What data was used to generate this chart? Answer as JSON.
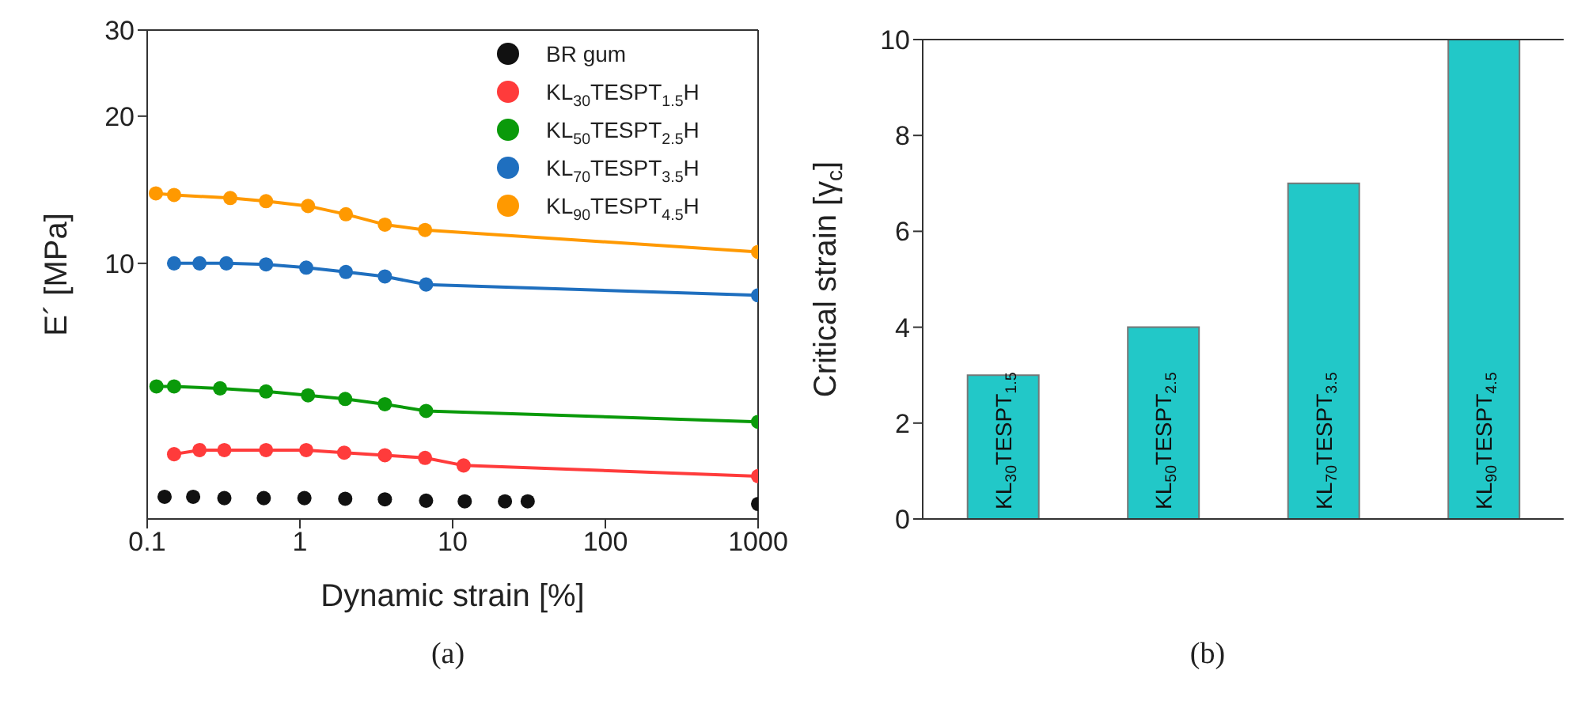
{
  "chart_data": [
    {
      "type": "line",
      "xlabel": "Dynamic strain [%]",
      "ylabel": "E´ [MPa]",
      "log": "xy",
      "xlim": [
        0.1,
        1000
      ],
      "xticks": [
        0.1,
        1,
        10,
        100,
        1000
      ],
      "ylim": [
        3,
        30
      ],
      "yticks": [
        10,
        20,
        30
      ],
      "marker": "circle",
      "legend": "top right",
      "annotations": [
        "(a)"
      ],
      "series": [
        {
          "name": "BR gum",
          "type": "scatter",
          "color": "#111111",
          "x": [
            0.13,
            0.2,
            0.32,
            0.58,
            1.07,
            1.98,
            3.6,
            6.7,
            12,
            22,
            31,
            1000
          ],
          "values": [
            3.33,
            3.33,
            3.31,
            3.31,
            3.31,
            3.3,
            3.29,
            3.27,
            3.26,
            3.26,
            3.26,
            3.22
          ]
        },
        {
          "name": "KL$_{30}$TESPT$_{1.5}$H",
          "color": "#ff3b3b",
          "x": [
            0.15,
            0.22,
            0.32,
            0.6,
            1.1,
            1.95,
            3.6,
            6.6,
            11.8,
            1000
          ],
          "values": [
            4.07,
            4.15,
            4.15,
            4.15,
            4.15,
            4.1,
            4.05,
            4.0,
            3.86,
            3.67
          ]
        },
        {
          "name": "KL$_{50}$TESPT$_{2.5}$H",
          "color": "#0a9a0a",
          "x": [
            0.115,
            0.15,
            0.3,
            0.6,
            1.13,
            1.98,
            3.6,
            6.7,
            1000
          ],
          "values": [
            5.6,
            5.6,
            5.55,
            5.47,
            5.37,
            5.28,
            5.15,
            4.99,
            4.74
          ]
        },
        {
          "name": "KL$_{70}$TESPT$_{3.5}$H",
          "color": "#1f6fbf",
          "x": [
            0.15,
            0.22,
            0.33,
            0.6,
            1.1,
            2,
            3.6,
            6.7,
            1000
          ],
          "values": [
            10,
            10,
            10,
            9.95,
            9.8,
            9.6,
            9.4,
            9.05,
            8.6
          ]
        },
        {
          "name": "KL$_{90}$TESPT$_{4.5}$H",
          "color": "#ff9900",
          "x": [
            0.114,
            0.15,
            0.35,
            0.6,
            1.13,
            2,
            3.6,
            6.6,
            1000
          ],
          "values": [
            13.9,
            13.8,
            13.6,
            13.4,
            13.1,
            12.6,
            12.0,
            11.7,
            10.55
          ]
        }
      ]
    },
    {
      "type": "bar",
      "ylabel": "Critical strain [γ$_{c}$]",
      "categories": [
        "KL$_{30}$TESPT$_{1.5}$",
        "KL$_{50}$TESPT$_{2.5}$",
        "KL$_{70}$TESPT$_{3.5}$",
        "KL$_{90}$TESPT$_{4.5}$"
      ],
      "values": [
        3,
        4,
        7,
        10
      ],
      "color": "#22c8c8",
      "ylim": [
        0,
        10
      ],
      "yticks": [
        0,
        2,
        4,
        6,
        8,
        10
      ],
      "annotations": [
        "(b)"
      ]
    }
  ]
}
